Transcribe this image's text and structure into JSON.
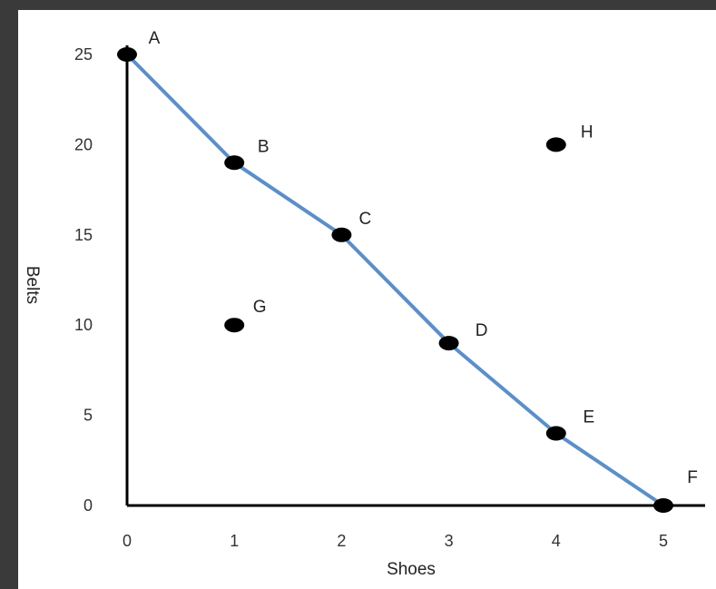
{
  "chart_data": {
    "type": "line",
    "xlabel": "Shoes",
    "ylabel": "Belts",
    "xlim": [
      0,
      5
    ],
    "ylim": [
      0,
      25
    ],
    "x_ticks": [
      "0",
      "1",
      "2",
      "3",
      "4",
      "5"
    ],
    "y_ticks": [
      "0",
      "5",
      "10",
      "15",
      "20",
      "25"
    ],
    "grid": false,
    "colors": {
      "curve": "#5b8fc9",
      "point": "#000000",
      "axis": "#000000"
    },
    "curve_points": [
      {
        "label": "A",
        "x": 0,
        "y": 25
      },
      {
        "label": "B",
        "x": 1,
        "y": 19
      },
      {
        "label": "C",
        "x": 2,
        "y": 15
      },
      {
        "label": "D",
        "x": 3,
        "y": 9
      },
      {
        "label": "E",
        "x": 4,
        "y": 4
      },
      {
        "label": "F",
        "x": 5,
        "y": 0
      }
    ],
    "other_points": [
      {
        "label": "G",
        "x": 1,
        "y": 10
      },
      {
        "label": "H",
        "x": 4,
        "y": 20
      }
    ]
  }
}
